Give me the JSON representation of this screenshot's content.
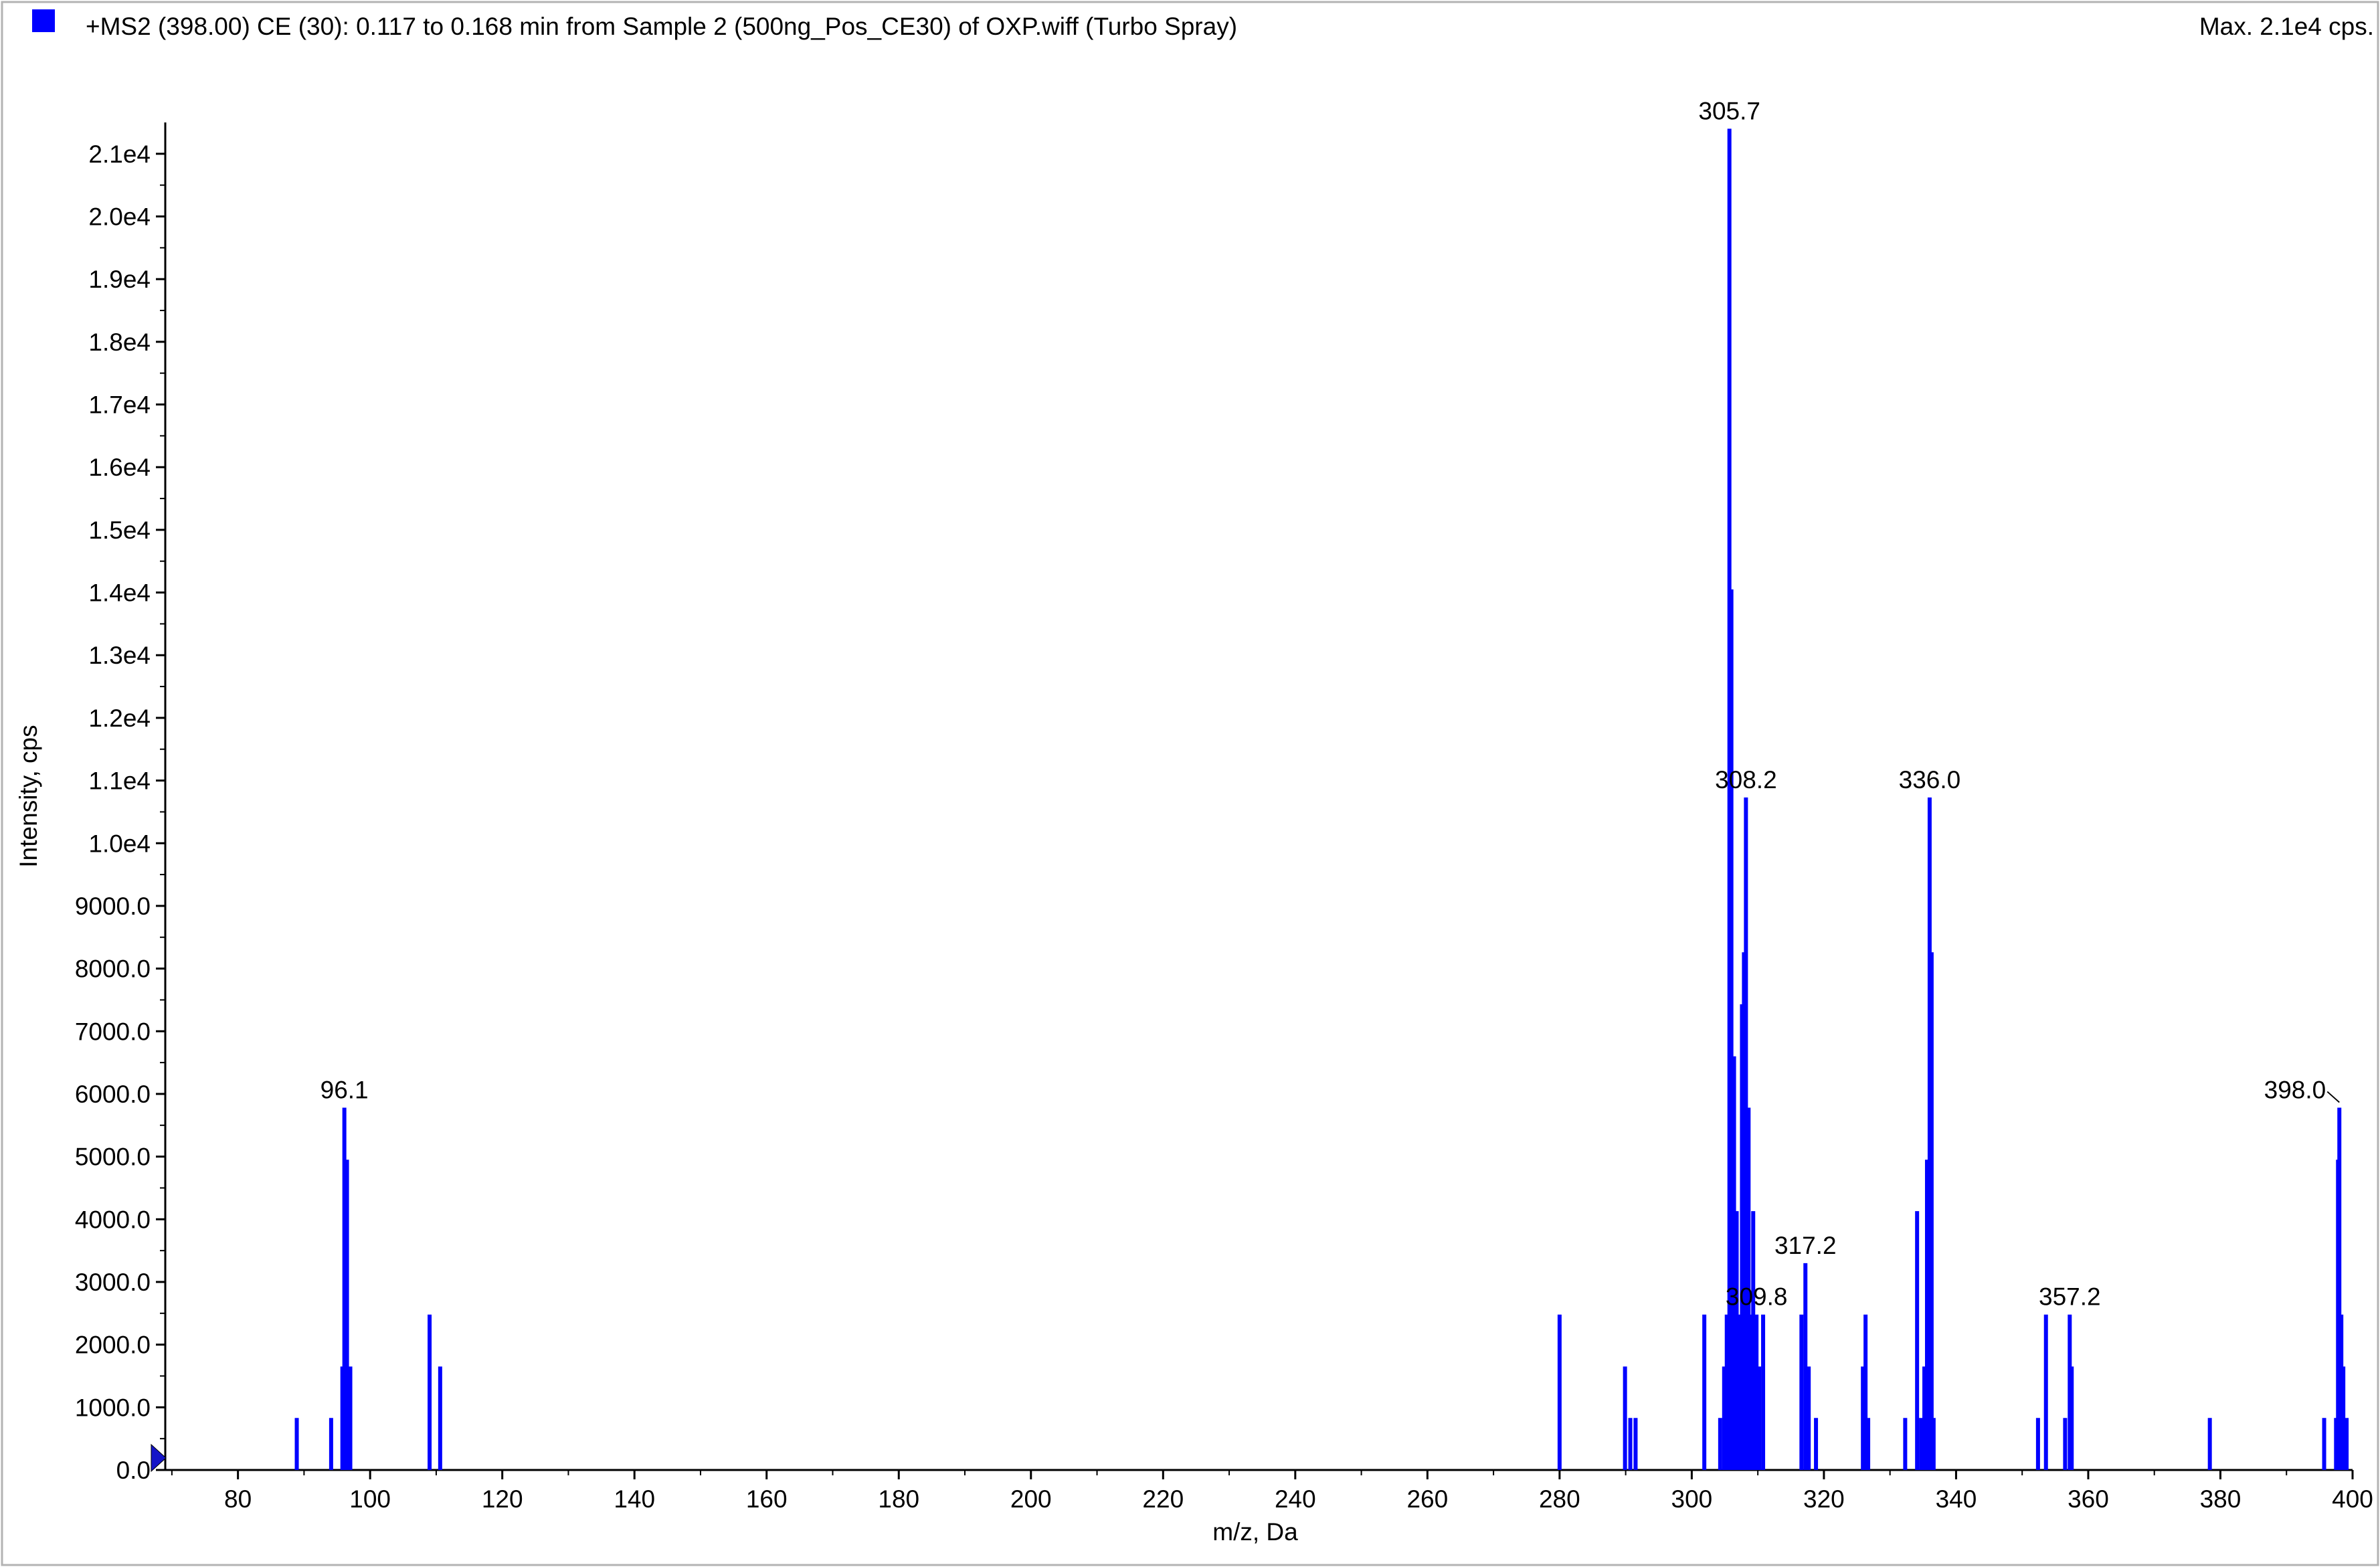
{
  "header": {
    "title": "+MS2 (398.00) CE (30): 0.117 to 0.168 min from Sample 2 (500ng_Pos_CE30) of OXP.wiff (Turbo Spray)",
    "max_label": "Max. 2.1e4 cps."
  },
  "colors": {
    "series": "#0000ff",
    "axis": "#000000",
    "background": "#ffffff"
  },
  "chart_data": {
    "type": "bar",
    "title": "+MS2 (398.00) CE (30): 0.117 to 0.168 min from Sample 2 (500ng_Pos_CE30) of OXP.wiff (Turbo Spray)",
    "xlabel": "m/z, Da",
    "ylabel": "Intensity, cps",
    "xlim": [
      69,
      400
    ],
    "ylim": [
      0,
      21500
    ],
    "grid": false,
    "x_ticks": [
      80,
      100,
      120,
      140,
      160,
      180,
      200,
      220,
      240,
      260,
      280,
      300,
      320,
      340,
      360,
      380,
      400
    ],
    "x_tick_labels": [
      "80",
      "100",
      "120",
      "140",
      "160",
      "180",
      "200",
      "220",
      "240",
      "260",
      "280",
      "300",
      "320",
      "340",
      "360",
      "380",
      "400"
    ],
    "y_ticks": [
      0,
      1000,
      2000,
      3000,
      4000,
      5000,
      6000,
      7000,
      8000,
      9000,
      10000,
      11000,
      12000,
      13000,
      14000,
      15000,
      16000,
      17000,
      18000,
      19000,
      20000,
      21000
    ],
    "y_tick_labels": [
      "0.0",
      "1000.0",
      "2000.0",
      "3000.0",
      "4000.0",
      "5000.0",
      "6000.0",
      "7000.0",
      "8000.0",
      "9000.0",
      "1.0e4",
      "1.1e4",
      "1.2e4",
      "1.3e4",
      "1.4e4",
      "1.5e4",
      "1.6e4",
      "1.7e4",
      "1.8e4",
      "1.9e4",
      "2.0e4",
      "2.1e4"
    ],
    "series": [
      {
        "points": [
          {
            "x": 88.9,
            "y": 830
          },
          {
            "x": 94.1,
            "y": 830
          },
          {
            "x": 95.8,
            "y": 1650
          },
          {
            "x": 96.1,
            "y": 5780
          },
          {
            "x": 96.5,
            "y": 4950
          },
          {
            "x": 97.0,
            "y": 1650
          },
          {
            "x": 109.0,
            "y": 2480
          },
          {
            "x": 110.6,
            "y": 1650
          },
          {
            "x": 280.0,
            "y": 2480
          },
          {
            "x": 289.9,
            "y": 1650
          },
          {
            "x": 290.7,
            "y": 830
          },
          {
            "x": 291.5,
            "y": 830
          },
          {
            "x": 301.9,
            "y": 2480
          },
          {
            "x": 304.3,
            "y": 830
          },
          {
            "x": 304.9,
            "y": 1650
          },
          {
            "x": 305.3,
            "y": 2480
          },
          {
            "x": 305.7,
            "y": 21400
          },
          {
            "x": 306.0,
            "y": 14050
          },
          {
            "x": 306.4,
            "y": 6600
          },
          {
            "x": 306.8,
            "y": 4130
          },
          {
            "x": 307.2,
            "y": 2480
          },
          {
            "x": 307.6,
            "y": 7430
          },
          {
            "x": 307.9,
            "y": 8260
          },
          {
            "x": 308.2,
            "y": 10730
          },
          {
            "x": 308.6,
            "y": 5780
          },
          {
            "x": 308.9,
            "y": 2480
          },
          {
            "x": 309.3,
            "y": 4130
          },
          {
            "x": 309.8,
            "y": 2480
          },
          {
            "x": 310.2,
            "y": 1650
          },
          {
            "x": 310.8,
            "y": 2480
          },
          {
            "x": 316.6,
            "y": 2480
          },
          {
            "x": 317.2,
            "y": 3300
          },
          {
            "x": 317.7,
            "y": 1650
          },
          {
            "x": 318.8,
            "y": 830
          },
          {
            "x": 325.9,
            "y": 1650
          },
          {
            "x": 326.3,
            "y": 2480
          },
          {
            "x": 326.7,
            "y": 830
          },
          {
            "x": 332.3,
            "y": 830
          },
          {
            "x": 334.1,
            "y": 4130
          },
          {
            "x": 334.7,
            "y": 830
          },
          {
            "x": 335.2,
            "y": 1650
          },
          {
            "x": 335.6,
            "y": 4950
          },
          {
            "x": 336.0,
            "y": 10730
          },
          {
            "x": 336.3,
            "y": 8260
          },
          {
            "x": 336.6,
            "y": 830
          },
          {
            "x": 352.4,
            "y": 830
          },
          {
            "x": 353.6,
            "y": 2480
          },
          {
            "x": 356.5,
            "y": 830
          },
          {
            "x": 357.2,
            "y": 2480
          },
          {
            "x": 357.5,
            "y": 1650
          },
          {
            "x": 378.4,
            "y": 830
          },
          {
            "x": 395.7,
            "y": 830
          },
          {
            "x": 397.5,
            "y": 830
          },
          {
            "x": 397.8,
            "y": 4950
          },
          {
            "x": 398.0,
            "y": 5780
          },
          {
            "x": 398.3,
            "y": 2480
          },
          {
            "x": 398.6,
            "y": 1650
          },
          {
            "x": 399.1,
            "y": 830
          }
        ]
      }
    ],
    "annotations": [
      {
        "text": "96.1",
        "x": 96.1,
        "y": 5780
      },
      {
        "text": "305.7",
        "x": 305.7,
        "y": 21400
      },
      {
        "text": "308.2",
        "x": 308.2,
        "y": 10730
      },
      {
        "text": "336.0",
        "x": 336.0,
        "y": 10730
      },
      {
        "text": "317.2",
        "x": 317.2,
        "y": 3300
      },
      {
        "text": "309.8",
        "x": 309.8,
        "y": 2480
      },
      {
        "text": "357.2",
        "x": 357.2,
        "y": 2480
      },
      {
        "text": "398.0",
        "x": 398.0,
        "y": 5780
      }
    ]
  }
}
